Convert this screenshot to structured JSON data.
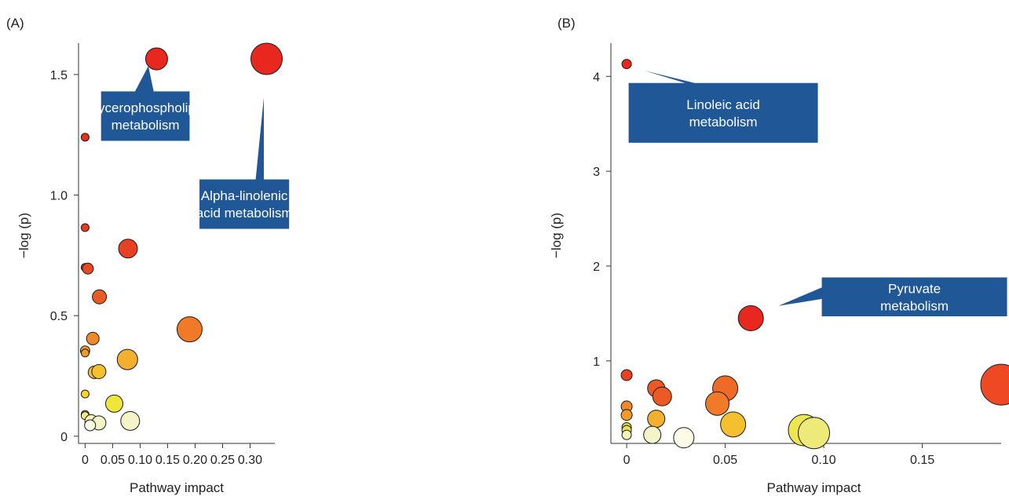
{
  "chart_data": [
    {
      "type": "scatter",
      "panel_label": "(A)",
      "title": "",
      "xlabel": "Pathway impact",
      "ylabel": "−log (p)",
      "xlim": [
        -0.012,
        0.345
      ],
      "ylim": [
        -0.03,
        1.63
      ],
      "xticks": [
        0,
        0.05,
        0.1,
        0.15,
        0.2,
        0.25,
        0.3
      ],
      "xtick_labels": [
        "0",
        "0.05",
        "0.10",
        "0.15",
        "0.20",
        "0.25",
        "0.30"
      ],
      "yticks": [
        0,
        0.5,
        1.0,
        1.5
      ],
      "ytick_labels": [
        "0",
        "0.5",
        "1.0",
        "1.5"
      ],
      "grid": false,
      "color_encoding": "-log(p): red = high, pale yellow = low",
      "size_encoding": "pathway impact",
      "points": [
        {
          "x": 0.13,
          "y": 1.565,
          "r": 14,
          "color": "#e8271e"
        },
        {
          "x": 0.33,
          "y": 1.565,
          "r": 20,
          "color": "#e8271e"
        },
        {
          "x": 0.0,
          "y": 1.24,
          "r": 5,
          "color": "#e5301f"
        },
        {
          "x": 0.0,
          "y": 0.865,
          "r": 5,
          "color": "#e53b20"
        },
        {
          "x": 0.0,
          "y": 0.7,
          "r": 5,
          "color": "#e64a21"
        },
        {
          "x": 0.005,
          "y": 0.695,
          "r": 7,
          "color": "#e64a21"
        },
        {
          "x": 0.078,
          "y": 0.778,
          "r": 12,
          "color": "#e84022"
        },
        {
          "x": 0.026,
          "y": 0.578,
          "r": 9,
          "color": "#ea5a24"
        },
        {
          "x": 0.19,
          "y": 0.443,
          "r": 16,
          "color": "#f07a27"
        },
        {
          "x": 0.014,
          "y": 0.405,
          "r": 8,
          "color": "#f0892a"
        },
        {
          "x": 0.0,
          "y": 0.355,
          "r": 6,
          "color": "#f19a2c"
        },
        {
          "x": 0.0,
          "y": 0.345,
          "r": 5,
          "color": "#f19a2c"
        },
        {
          "x": 0.077,
          "y": 0.318,
          "r": 13,
          "color": "#f3b02e"
        },
        {
          "x": 0.017,
          "y": 0.265,
          "r": 8,
          "color": "#f4c030"
        },
        {
          "x": 0.025,
          "y": 0.268,
          "r": 9,
          "color": "#f4c030"
        },
        {
          "x": 0.0,
          "y": 0.175,
          "r": 5,
          "color": "#f5d433"
        },
        {
          "x": 0.053,
          "y": 0.135,
          "r": 11,
          "color": "#eee63a"
        },
        {
          "x": 0.0,
          "y": 0.09,
          "r": 5,
          "color": "#f0ec80"
        },
        {
          "x": 0.0,
          "y": 0.085,
          "r": 5,
          "color": "#f0ec80"
        },
        {
          "x": 0.011,
          "y": 0.063,
          "r": 8,
          "color": "#f3f2b8"
        },
        {
          "x": 0.025,
          "y": 0.055,
          "r": 9,
          "color": "#f5f4c8"
        },
        {
          "x": 0.082,
          "y": 0.063,
          "r": 12,
          "color": "#f5f4c8"
        },
        {
          "x": 0.009,
          "y": 0.045,
          "r": 7,
          "color": "#fbfbe8"
        }
      ],
      "annotations": [
        {
          "lines": [
            "Glycerophospholipid",
            "metabolism"
          ],
          "box": [
            0.029,
            1.43,
            0.19,
            1.225
          ],
          "pointer_to": [
            0.115,
            1.535
          ],
          "base": [
            0.09,
            0.125
          ]
        },
        {
          "lines": [
            "Alpha-linolenic",
            "acid metabolism"
          ],
          "box": [
            0.208,
            1.065,
            0.371,
            0.86
          ],
          "pointer_to": [
            0.325,
            1.405
          ],
          "base": [
            0.31,
            0.325
          ]
        }
      ]
    },
    {
      "type": "scatter",
      "panel_label": "(B)",
      "title": "",
      "xlabel": "Pathway impact",
      "ylabel": "−log (p)",
      "xlim": [
        -0.008,
        0.19
      ],
      "ylim": [
        0.13,
        4.35
      ],
      "xticks": [
        0,
        0.05,
        0.1,
        0.15
      ],
      "xtick_labels": [
        "0",
        "0.05",
        "0.10",
        "0.15"
      ],
      "yticks": [
        1,
        2,
        3,
        4
      ],
      "ytick_labels": [
        "1",
        "2",
        "3",
        "4"
      ],
      "grid": false,
      "color_encoding": "-log(p): red = high, pale yellow = low",
      "size_encoding": "pathway impact",
      "points": [
        {
          "x": 0.0,
          "y": 4.13,
          "r": 6,
          "color": "#e8271e"
        },
        {
          "x": 0.063,
          "y": 1.45,
          "r": 16,
          "color": "#e8271e"
        },
        {
          "x": 0.19,
          "y": 0.75,
          "r": 26,
          "color": "#ee4923"
        },
        {
          "x": 0.0,
          "y": 0.85,
          "r": 7,
          "color": "#e84022"
        },
        {
          "x": 0.015,
          "y": 0.71,
          "r": 11,
          "color": "#ec5a24"
        },
        {
          "x": 0.018,
          "y": 0.625,
          "r": 12,
          "color": "#ec5a24"
        },
        {
          "x": 0.05,
          "y": 0.71,
          "r": 16,
          "color": "#ee6a25"
        },
        {
          "x": 0.046,
          "y": 0.55,
          "r": 15,
          "color": "#f07a27"
        },
        {
          "x": 0.0,
          "y": 0.52,
          "r": 7,
          "color": "#f08a29"
        },
        {
          "x": 0.0,
          "y": 0.43,
          "r": 7,
          "color": "#f19a2c"
        },
        {
          "x": 0.015,
          "y": 0.39,
          "r": 11,
          "color": "#f3b02e"
        },
        {
          "x": 0.054,
          "y": 0.33,
          "r": 16,
          "color": "#f4c030"
        },
        {
          "x": 0.0,
          "y": 0.3,
          "r": 6,
          "color": "#e0d838"
        },
        {
          "x": 0.0,
          "y": 0.27,
          "r": 6,
          "color": "#e6e05a"
        },
        {
          "x": 0.09,
          "y": 0.27,
          "r": 20,
          "color": "#ece650"
        },
        {
          "x": 0.095,
          "y": 0.24,
          "r": 20,
          "color": "#eeea7a"
        },
        {
          "x": 0.0,
          "y": 0.22,
          "r": 6,
          "color": "#f3f2b8"
        },
        {
          "x": 0.013,
          "y": 0.22,
          "r": 11,
          "color": "#f5f4c8"
        },
        {
          "x": 0.029,
          "y": 0.19,
          "r": 13,
          "color": "#fbfbe8"
        }
      ],
      "annotations": [
        {
          "lines": [
            "Linoleic acid",
            "metabolism"
          ],
          "box": [
            0.001,
            3.93,
            0.097,
            3.3
          ],
          "pointer_to": [
            0.009,
            4.06
          ],
          "base": [
            0.031,
            0.036
          ]
        },
        {
          "lines": [
            "Pyruvate",
            "metabolism"
          ],
          "box": [
            0.099,
            1.88,
            0.193,
            1.47
          ],
          "pointer_to": [
            0.077,
            1.58
          ],
          "base": [
            0.1,
            0.1
          ]
        }
      ]
    }
  ]
}
